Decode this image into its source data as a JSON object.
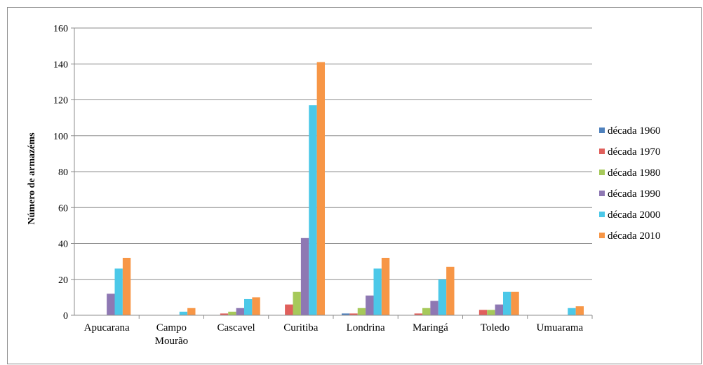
{
  "chart_data": {
    "type": "bar",
    "title": "",
    "xlabel": "",
    "ylabel": "Número de armazéms",
    "ylim": [
      0,
      160
    ],
    "yticks": [
      0,
      20,
      40,
      60,
      80,
      100,
      120,
      140,
      160
    ],
    "grid": true,
    "legend_position": "right",
    "categories": [
      [
        "Apucarana"
      ],
      [
        "Campo",
        "Mourão"
      ],
      [
        "Cascavel"
      ],
      [
        "Curitiba"
      ],
      [
        "Londrina"
      ],
      [
        "Maringá"
      ],
      [
        "Toledo"
      ],
      [
        "Umuarama"
      ]
    ],
    "series": [
      {
        "name": "década 1960",
        "color": "#4f81bd",
        "values": [
          0,
          0,
          0,
          0,
          1,
          0,
          0,
          0
        ]
      },
      {
        "name": "década 1970",
        "color": "#e0605c",
        "values": [
          0,
          0,
          1,
          6,
          1,
          1,
          3,
          0
        ]
      },
      {
        "name": "década 1980",
        "color": "#a6c95a",
        "values": [
          0,
          0,
          2,
          13,
          4,
          4,
          3,
          0
        ]
      },
      {
        "name": "década 1990",
        "color": "#8e78b3",
        "values": [
          12,
          0,
          4,
          43,
          11,
          8,
          6,
          0
        ]
      },
      {
        "name": "década 2000",
        "color": "#4bc8e8",
        "values": [
          26,
          2,
          9,
          117,
          26,
          20,
          13,
          4
        ]
      },
      {
        "name": "década 2010",
        "color": "#f79646",
        "values": [
          32,
          4,
          10,
          141,
          32,
          27,
          13,
          5
        ]
      }
    ]
  }
}
